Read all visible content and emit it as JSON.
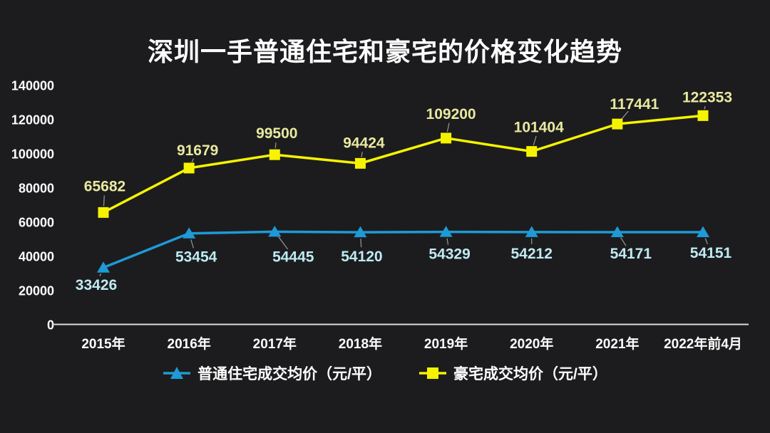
{
  "title": "深圳一手普通住宅和豪宅的价格变化趋势",
  "colors": {
    "background": "#1c1c1e",
    "title_text": "#fdfdfd",
    "axis_line": "#d9d9d9",
    "tick_label": "#fdfdfd",
    "leader_line": "#909090",
    "normal_series": "#1e9ad6",
    "normal_data_label": "#bfeaf2",
    "luxury_series": "#f6f300",
    "luxury_data_label": "#e9e9a0"
  },
  "chart_data": {
    "type": "line",
    "title": "深圳一手普通住宅和豪宅的价格变化趋势",
    "categories": [
      "2015年",
      "2016年",
      "2017年",
      "2018年",
      "2019年",
      "2020年",
      "2021年",
      "2022年前4月"
    ],
    "series": [
      {
        "name": "普通住宅成交均价（元/平）",
        "marker": "triangle-up",
        "color": "#1e9ad6",
        "label_color": "#bfeaf2",
        "label_side": "below",
        "values": [
          33426,
          53454,
          54445,
          54120,
          54329,
          54212,
          54171,
          54151
        ]
      },
      {
        "name": "豪宅成交均价（元/平）",
        "marker": "square",
        "color": "#f6f300",
        "label_color": "#e9e9a0",
        "label_side": "above",
        "values": [
          65682,
          91679,
          99500,
          94424,
          109200,
          101404,
          117441,
          122353
        ]
      }
    ],
    "ylim": [
      0,
      140000
    ],
    "yticks": [
      0,
      20000,
      40000,
      60000,
      80000,
      100000,
      120000,
      140000
    ],
    "xlabel": "",
    "ylabel": "",
    "grid": "off",
    "data_labels": "on",
    "legend_position": "bottom"
  },
  "legend": {
    "items": [
      {
        "label": "普通住宅成交均价（元/平）",
        "marker": "triangle-up",
        "color": "#1e9ad6"
      },
      {
        "label": "豪宅成交均价（元/平）",
        "marker": "square",
        "color": "#f6f300"
      }
    ]
  }
}
